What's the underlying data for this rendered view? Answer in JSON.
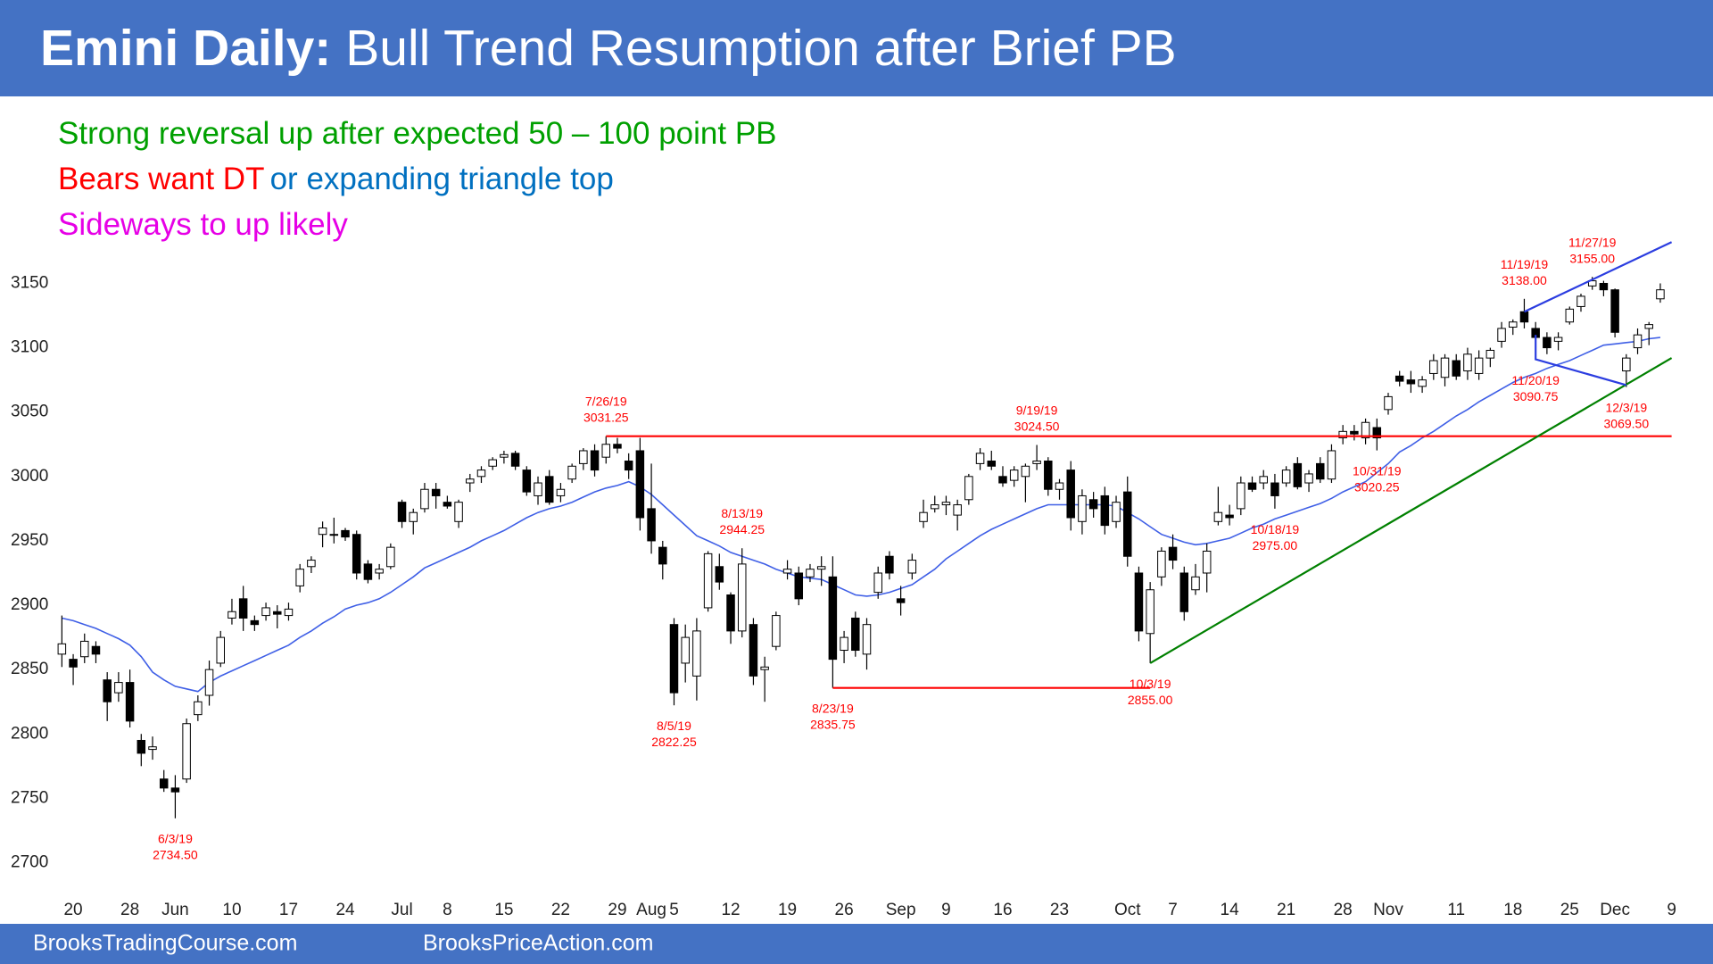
{
  "header": {
    "title_bold": "Emini Daily:",
    "title_rest": "Bull Trend Resumption after Brief PB"
  },
  "footer": {
    "left": "BrooksTradingCourse.com",
    "right": "BrooksPriceAction.com"
  },
  "chart_data": {
    "type": "candlestick",
    "subtitle_lines": [
      [
        {
          "text": "Strong reversal up after expected 50 – 100 point PB",
          "color": "#00a000"
        }
      ],
      [
        {
          "text": "Bears want DT",
          "color": "#ff0000"
        },
        {
          "text": "or expanding triangle top",
          "color": "#0070c0"
        }
      ],
      [
        {
          "text": "Sideways to up likely",
          "color": "#e600e6"
        }
      ]
    ],
    "categories": [
      null,
      "20",
      null,
      null,
      null,
      null,
      "28",
      null,
      null,
      null,
      "Jun",
      null,
      null,
      null,
      null,
      "10",
      null,
      null,
      null,
      null,
      "17",
      null,
      null,
      null,
      null,
      "24",
      null,
      null,
      null,
      null,
      "Jul",
      null,
      null,
      null,
      "8",
      null,
      null,
      null,
      null,
      "15",
      null,
      null,
      null,
      null,
      "22",
      null,
      null,
      null,
      null,
      "29",
      null,
      null,
      "Aug",
      null,
      "5",
      null,
      null,
      null,
      null,
      "12",
      null,
      null,
      null,
      null,
      "19",
      null,
      null,
      null,
      null,
      "26",
      null,
      null,
      null,
      null,
      "Sep",
      null,
      null,
      null,
      "9",
      null,
      null,
      null,
      null,
      "16",
      null,
      null,
      null,
      null,
      "23",
      null,
      null,
      null,
      null,
      null,
      "Oct",
      null,
      null,
      null,
      "7",
      null,
      null,
      null,
      null,
      "14",
      null,
      null,
      null,
      null,
      "21",
      null,
      null,
      null,
      null,
      "28",
      null,
      null,
      null,
      "Nov",
      null,
      null,
      null,
      null,
      null,
      "11",
      null,
      null,
      null,
      null,
      "18",
      null,
      null,
      null,
      null,
      "25",
      null,
      null,
      null,
      "Dec",
      null,
      null,
      null,
      null,
      "9"
    ],
    "open": [
      2862,
      2858,
      2860,
      2868,
      2842,
      2832,
      2840,
      2795,
      2788,
      2765,
      2758,
      2765,
      2815,
      2830,
      2855,
      2890,
      2905,
      2888,
      2892,
      2895,
      2892,
      2915,
      2930,
      2955,
      2955,
      2958,
      2955,
      2932,
      2925,
      2930,
      2980,
      2965,
      2975,
      2990,
      2980,
      2965,
      2995,
      3000,
      3008,
      3015,
      3018,
      3005,
      2985,
      3000,
      2985,
      2998,
      3010,
      3020,
      3015,
      3025,
      3012,
      3020,
      2975,
      2945,
      2885,
      2855,
      2845,
      2898,
      2930,
      2908,
      2880,
      2885,
      2850,
      2868,
      2925,
      2925,
      2922,
      2928,
      2922,
      2865,
      2890,
      2862,
      2910,
      2938,
      2905,
      2925,
      2965,
      2975,
      2978,
      2970,
      2982,
      3010,
      3012,
      3000,
      2997,
      3000,
      3010,
      3012,
      2990,
      3005,
      2965,
      2982,
      2985,
      2965,
      2988,
      2925,
      2878,
      2922,
      2945,
      2925,
      2912,
      2925,
      2965,
      2970,
      2975,
      2995,
      2995,
      2995,
      2995,
      3010,
      2995,
      3010,
      2998,
      3030,
      3035,
      3030,
      3038,
      3052,
      3078,
      3075,
      3070,
      3080,
      3077,
      3090,
      3082,
      3080,
      3092,
      3105,
      3116,
      3128,
      3115,
      3108,
      3105,
      3120,
      3132,
      3148,
      3150,
      3145,
      3082,
      3100,
      3115,
      3138,
      null
    ],
    "high": [
      2892,
      2862,
      2878,
      2872,
      2848,
      2848,
      2850,
      2800,
      2798,
      2772,
      2768,
      2812,
      2830,
      2857,
      2880,
      2905,
      2915,
      2892,
      2902,
      2900,
      2902,
      2932,
      2938,
      2965,
      2968,
      2960,
      2958,
      2935,
      2932,
      2948,
      2982,
      2975,
      2995,
      2995,
      2985,
      2982,
      3002,
      3008,
      3015,
      3020,
      3020,
      3008,
      3000,
      3005,
      2995,
      3010,
      3022,
      3025,
      3031.25,
      3030,
      3018,
      3030,
      3010,
      2950,
      2890,
      2885,
      2890,
      2942,
      2940,
      2910,
      2944.25,
      2890,
      2860,
      2895,
      2935,
      2930,
      2932,
      2938,
      2938,
      2880,
      2895,
      2890,
      2930,
      2942,
      2915,
      2940,
      2982,
      2985,
      2985,
      2982,
      3002,
      3022,
      3020,
      3008,
      3008,
      3010,
      3024.5,
      3015,
      2998,
      3012,
      2990,
      2988,
      2992,
      2985,
      3000,
      2930,
      2918,
      2945,
      2955,
      2930,
      2932,
      2948,
      2992,
      2978,
      3000,
      3000,
      3005,
      3002,
      3008,
      3015,
      3005,
      3015,
      3025,
      3040,
      3040,
      3045,
      3045,
      3065,
      3082,
      3082,
      3078,
      3095,
      3095,
      3095,
      3100,
      3098,
      3100,
      3120,
      3122,
      3138,
      3120,
      3112,
      3112,
      3132,
      3142,
      3155,
      3152,
      3146,
      3095,
      3115,
      3120,
      3150,
      null
    ],
    "low": [
      2852,
      2838,
      2855,
      2855,
      2810,
      2825,
      2805,
      2775,
      2780,
      2755,
      2734.5,
      2762,
      2810,
      2822,
      2852,
      2885,
      2880,
      2880,
      2888,
      2882,
      2888,
      2910,
      2925,
      2945,
      2948,
      2950,
      2920,
      2917,
      2920,
      2928,
      2960,
      2955,
      2972,
      2975,
      2975,
      2960,
      2988,
      2995,
      3005,
      3010,
      3005,
      2985,
      2978,
      2978,
      2980,
      2995,
      3005,
      3000,
      3010,
      3018,
      2998,
      2958,
      2940,
      2920,
      2822.25,
      2840,
      2826,
      2895,
      2912,
      2870,
      2875,
      2838,
      2825,
      2865,
      2920,
      2900,
      2918,
      2915,
      2835.75,
      2855,
      2860,
      2850,
      2905,
      2920,
      2892,
      2920,
      2960,
      2972,
      2970,
      2958,
      2978,
      3005,
      3005,
      2992,
      2992,
      2980,
      3005,
      2985,
      2982,
      2958,
      2955,
      2968,
      2955,
      2960,
      2930,
      2872,
      2855,
      2915,
      2928,
      2888,
      2908,
      2910,
      2962,
      2962,
      2970,
      2988,
      2990,
      2975,
      2992,
      2990,
      2988,
      2995,
      2995,
      3025,
      3028,
      3025,
      3020.25,
      3048,
      3070,
      3065,
      3065,
      3075,
      3070,
      3075,
      3075,
      3075,
      3085,
      3100,
      3110,
      3115,
      3090.75,
      3095,
      3098,
      3118,
      3128,
      3145,
      3140,
      3108,
      3069.5,
      3095,
      3102,
      3135,
      null
    ],
    "close": [
      2870,
      2852,
      2872,
      2862,
      2825,
      2840,
      2810,
      2785,
      2790,
      2758,
      2755,
      2808,
      2825,
      2850,
      2875,
      2895,
      2890,
      2885,
      2898,
      2893,
      2897,
      2928,
      2935,
      2960,
      2955,
      2953,
      2925,
      2920,
      2928,
      2945,
      2965,
      2972,
      2990,
      2985,
      2977,
      2980,
      2998,
      3005,
      3013,
      3017,
      3008,
      2988,
      2995,
      2980,
      2990,
      3008,
      3020,
      3005,
      3025,
      3022,
      3005,
      2968,
      2950,
      2932,
      2832,
      2875,
      2880,
      2940,
      2918,
      2880,
      2932,
      2845,
      2852,
      2892,
      2928,
      2905,
      2928,
      2930,
      2858,
      2875,
      2865,
      2885,
      2925,
      2925,
      2902,
      2935,
      2972,
      2978,
      2980,
      2978,
      3000,
      3018,
      3008,
      2995,
      3005,
      3008,
      3012,
      2990,
      2995,
      2968,
      2985,
      2975,
      2962,
      2980,
      2938,
      2880,
      2912,
      2942,
      2935,
      2895,
      2922,
      2942,
      2972,
      2968,
      2995,
      2990,
      3000,
      2985,
      3005,
      2992,
      3002,
      2998,
      3020,
      3035,
      3033,
      3042,
      3030,
      3062,
      3074,
      3072,
      3075,
      3090,
      3092,
      3078,
      3095,
      3092,
      3098,
      3115,
      3120,
      3120,
      3108,
      3100,
      3108,
      3130,
      3140,
      3152,
      3145,
      3112,
      3092,
      3110,
      3118,
      3145,
      null
    ],
    "up_color": "#ffffff",
    "down_color": "#000000",
    "ema": [
      2890,
      2888,
      2885,
      2882,
      2878,
      2874,
      2869,
      2860,
      2848,
      2842,
      2837,
      2835,
      2833,
      2840,
      2845,
      2849,
      2853,
      2857,
      2861,
      2865,
      2869,
      2875,
      2880,
      2886,
      2891,
      2897,
      2900,
      2902,
      2905,
      2910,
      2916,
      2922,
      2929,
      2933,
      2937,
      2941,
      2945,
      2950,
      2954,
      2958,
      2963,
      2968,
      2972,
      2975,
      2977,
      2980,
      2984,
      2988,
      2991,
      2993,
      2996,
      2992,
      2986,
      2978,
      2970,
      2962,
      2954,
      2950,
      2946,
      2941,
      2938,
      2935,
      2932,
      2928,
      2925,
      2922,
      2921,
      2920,
      2916,
      2912,
      2908,
      2907,
      2908,
      2910,
      2913,
      2916,
      2922,
      2928,
      2936,
      2942,
      2948,
      2954,
      2959,
      2963,
      2967,
      2971,
      2975,
      2978,
      2978,
      2978,
      2978,
      2978,
      2978,
      2977,
      2972,
      2967,
      2961,
      2955,
      2952,
      2949,
      2947,
      2948,
      2950,
      2952,
      2956,
      2960,
      2963,
      2967,
      2970,
      2973,
      2976,
      2979,
      2983,
      2988,
      2992,
      2996,
      3003,
      3010,
      3019,
      3024,
      3030,
      3035,
      3041,
      3047,
      3052,
      3058,
      3063,
      3068,
      3073,
      3077,
      3080,
      3084,
      3087,
      3090,
      3094,
      3098,
      3102,
      3103,
      3104,
      3105,
      3107,
      3108,
      null
    ],
    "ema_color": "#3f5fe6",
    "lines": [
      {
        "color": "#ff0000",
        "x": [
          48,
          142
        ],
        "y": [
          3031.25,
          3031.25
        ]
      },
      {
        "color": "#ff0000",
        "x": [
          68,
          96
        ],
        "y": [
          2835.75,
          2835.75
        ]
      },
      {
        "color": "#008000",
        "x": [
          96,
          142
        ],
        "y": [
          2855,
          3092
        ]
      },
      {
        "color": "#2b3de0",
        "x": [
          129,
          142
        ],
        "y": [
          3128,
          3182
        ]
      },
      {
        "color": "#2b3de0",
        "x": [
          130,
          130,
          138
        ],
        "y": [
          3110,
          3091,
          3071
        ]
      }
    ],
    "annotations": [
      {
        "date": "6/3/19",
        "price": "2734.50",
        "x": 10,
        "value": 2734.5,
        "position": "below"
      },
      {
        "date": "7/26/19",
        "price": "3031.25",
        "x": 48,
        "value": 3031.25,
        "position": "above"
      },
      {
        "date": "8/13/19",
        "price": "2944.25",
        "x": 60,
        "value": 2944.25,
        "position": "above"
      },
      {
        "date": "8/5/19",
        "price": "2822.25",
        "x": 54,
        "value": 2822.25,
        "position": "below"
      },
      {
        "date": "8/23/19",
        "price": "2835.75",
        "x": 68,
        "value": 2835.75,
        "position": "below"
      },
      {
        "date": "9/19/19",
        "price": "3024.50",
        "x": 86,
        "value": 3024.5,
        "position": "above"
      },
      {
        "date": "10/3/19",
        "price": "2855.00",
        "x": 96,
        "value": 2855,
        "position": "below"
      },
      {
        "date": "10/18/19",
        "price": "2975.00",
        "x": 107,
        "value": 2975,
        "position": "below"
      },
      {
        "date": "10/31/19",
        "price": "3020.25",
        "x": 116,
        "value": 3020.25,
        "position": "below"
      },
      {
        "date": "11/19/19",
        "price": "3138.00",
        "x": 129,
        "value": 3138,
        "position": "above"
      },
      {
        "date": "11/27/19",
        "price": "3155.00",
        "x": 135,
        "value": 3155,
        "position": "above"
      },
      {
        "date": "11/20/19",
        "price": "3090.75",
        "x": 130,
        "value": 3090.75,
        "position": "below"
      },
      {
        "date": "12/3/19",
        "price": "3069.50",
        "x": 138,
        "value": 3069.5,
        "position": "below"
      }
    ],
    "ylim": [
      2674,
      3289
    ],
    "yticks": [
      2700,
      2750,
      2800,
      2850,
      2900,
      2950,
      3000,
      3050,
      3100,
      3150
    ],
    "grid": false
  }
}
